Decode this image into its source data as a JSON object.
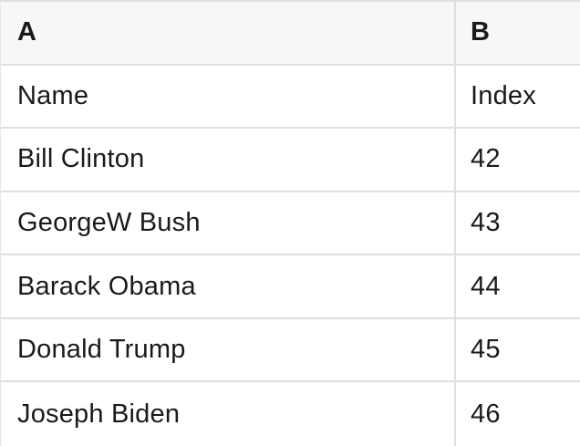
{
  "table": {
    "kind": "spreadsheet-grid",
    "columns": [
      {
        "id": "A",
        "label": "A"
      },
      {
        "id": "B",
        "label": "B"
      }
    ],
    "rows": [
      {
        "a": "Name",
        "b": "Index"
      },
      {
        "a": "Bill Clinton",
        "b": "42"
      },
      {
        "a": "GeorgeW Bush",
        "b": "43"
      },
      {
        "a": "Barack Obama",
        "b": "44"
      },
      {
        "a": "Donald Trump",
        "b": "45"
      },
      {
        "a": "Joseph Biden",
        "b": "46"
      }
    ],
    "colors": {
      "header_bg": "#f7f7f7",
      "grid_border": "#dfdfdf",
      "text": "#1a1a1a"
    }
  }
}
